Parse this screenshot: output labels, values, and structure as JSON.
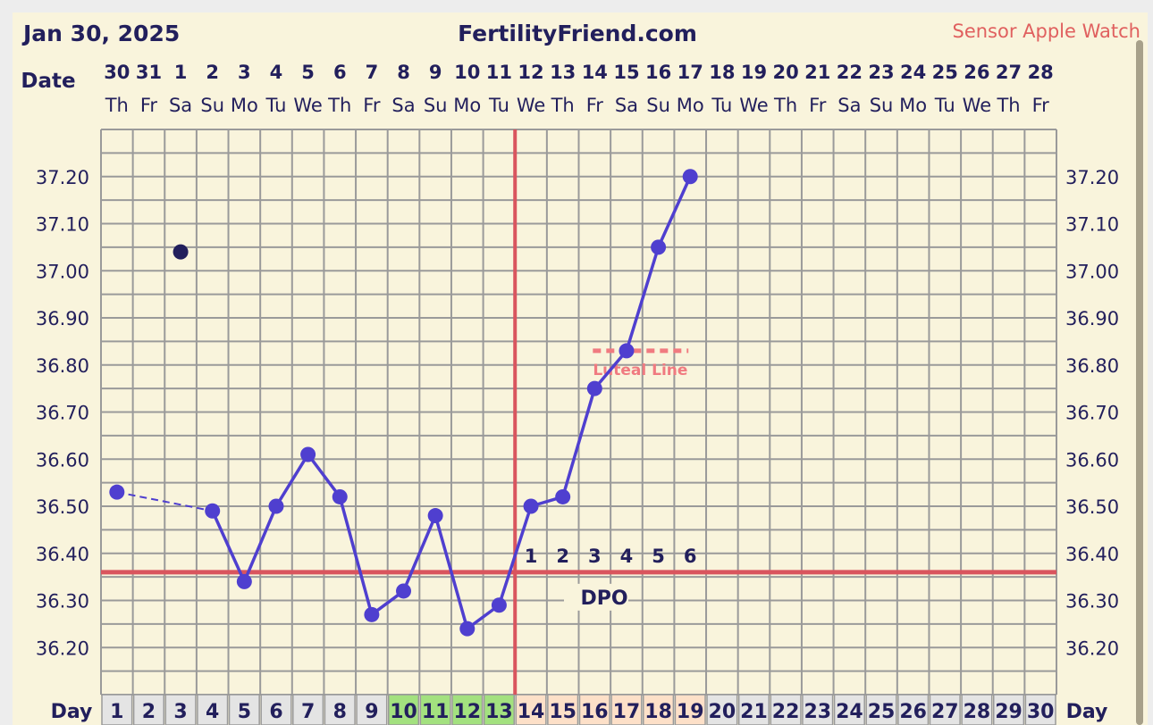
{
  "header": {
    "date": "Jan 30, 2025",
    "site": "FertilityFriend.com",
    "sensor": "Sensor Apple Watch"
  },
  "chart_data": {
    "type": "line",
    "date_label": "Date",
    "day_label": "Day",
    "dates": [
      "30",
      "31",
      "1",
      "2",
      "3",
      "4",
      "5",
      "6",
      "7",
      "8",
      "9",
      "10",
      "11",
      "12",
      "13",
      "14",
      "15",
      "16",
      "17",
      "18",
      "19",
      "20",
      "21",
      "22",
      "23",
      "24",
      "25",
      "26",
      "27",
      "28"
    ],
    "weekdays": [
      "Th",
      "Fr",
      "Sa",
      "Su",
      "Mo",
      "Tu",
      "We",
      "Th",
      "Fr",
      "Sa",
      "Su",
      "Mo",
      "Tu",
      "We",
      "Th",
      "Fr",
      "Sa",
      "Su",
      "Mo",
      "Tu",
      "We",
      "Th",
      "Fr",
      "Sa",
      "Su",
      "Mo",
      "Tu",
      "We",
      "Th",
      "Fr"
    ],
    "days": [
      1,
      2,
      3,
      4,
      5,
      6,
      7,
      8,
      9,
      10,
      11,
      12,
      13,
      14,
      15,
      16,
      17,
      18,
      19,
      20,
      21,
      22,
      23,
      24,
      25,
      26,
      27,
      28,
      29,
      30
    ],
    "temps": [
      36.53,
      null,
      37.04,
      36.49,
      36.34,
      36.5,
      36.61,
      36.52,
      36.27,
      36.32,
      36.48,
      36.24,
      36.29,
      36.5,
      36.52,
      36.75,
      36.83,
      37.05,
      37.2,
      null,
      null,
      null,
      null,
      null,
      null,
      null,
      null,
      null,
      null,
      null
    ],
    "excluded_days": [
      3
    ],
    "dashed_segment_days": [
      1,
      4
    ],
    "ylim": [
      36.1,
      37.3
    ],
    "yticks": [
      "36.20",
      "36.30",
      "36.40",
      "36.50",
      "36.60",
      "36.70",
      "36.80",
      "36.90",
      "37.00",
      "37.10",
      "37.20"
    ],
    "coverline": 36.36,
    "ovulation_after_day": 13,
    "luteal_line": {
      "value": 36.83,
      "from_day": 16,
      "to_day": 19,
      "label": "Luteal Line"
    },
    "dpo_label": "DPO",
    "dpo": [
      "1",
      "2",
      "3",
      "4",
      "5",
      "6"
    ],
    "fertile_days": [
      10,
      11,
      12,
      13
    ],
    "luteal_days": [
      14,
      15,
      16,
      17,
      18,
      19
    ],
    "grid": true,
    "colors": {
      "line": "#4f3fcf",
      "coverline": "#d9555e",
      "luteal": "#f07a80",
      "fertile": "#a3e17f",
      "luteal_bg": "#fde0c8",
      "day_bg": "#e4e4e4",
      "excluded": "#221f5c"
    }
  }
}
